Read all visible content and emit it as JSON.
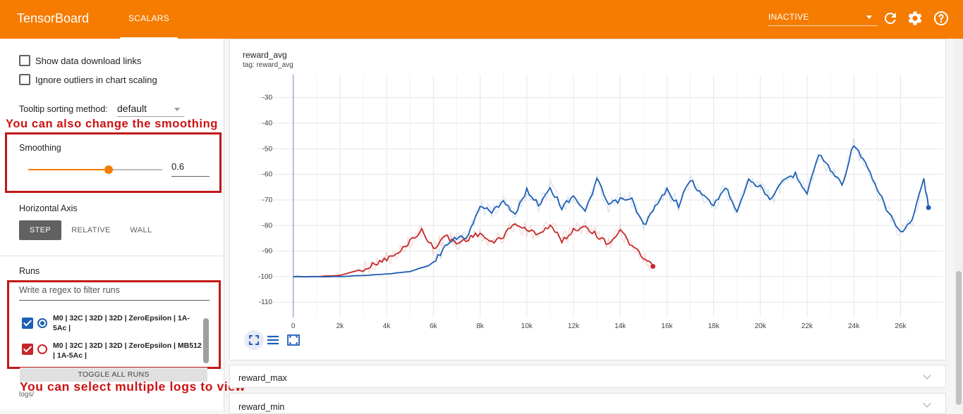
{
  "app": {
    "brand": "TensorBoard",
    "tab": "SCALARS",
    "status": "INACTIVE",
    "icons": [
      "refresh-icon",
      "gear-icon",
      "help-icon"
    ]
  },
  "sidebar": {
    "show_download": "Show data download links",
    "ignore_outliers": "Ignore outliers in chart scaling",
    "tooltip_label": "Tooltip sorting method:",
    "tooltip_value": "default",
    "annotation_smoothing": "You can also change the smoothing",
    "smoothing_label": "Smoothing",
    "smoothing_value": "0.6",
    "smoothing_level": 0.6,
    "horizontal_axis_label": "Horizontal Axis",
    "axis_options": [
      "STEP",
      "RELATIVE",
      "WALL"
    ],
    "axis_selected": "STEP",
    "runs_label": "Runs",
    "filter_placeholder": "Write a regex to filter runs",
    "runs": [
      {
        "label": "M0 | 32C | 32D | 32D | ZeroEpsilon | 1A-5Ac |",
        "color": "#1e5fb4",
        "checked": true,
        "selected": true
      },
      {
        "label": "M0 | 32C | 32D | 32D | ZeroEpsilon | MB512 | 1A-5Ac |",
        "color": "#c62828",
        "checked": true,
        "selected": false
      }
    ],
    "toggle_all": "TOGGLE ALL RUNS",
    "annotation_runs": "You can select multiple logs to view",
    "logs_label": "logs/"
  },
  "main": {
    "card_title": "reward_avg",
    "card_tag": "tag: reward_avg",
    "collapsed": [
      "reward_max",
      "reward_min"
    ]
  },
  "chart_data": {
    "type": "line",
    "title": "reward_avg",
    "xlim": [
      -1500,
      27800
    ],
    "ylim": [
      -116,
      -21
    ],
    "x_ticks": [
      0,
      2000,
      4000,
      6000,
      8000,
      10000,
      12000,
      14000,
      16000,
      18000,
      20000,
      22000,
      24000,
      26000
    ],
    "x_tick_labels": [
      "0",
      "2k",
      "4k",
      "6k",
      "8k",
      "10k",
      "12k",
      "14k",
      "16k",
      "18k",
      "20k",
      "22k",
      "24k",
      "26k"
    ],
    "y_ticks": [
      -110,
      -100,
      -90,
      -80,
      -70,
      -60,
      -50,
      -40,
      -30
    ],
    "y_tick_labels": [
      "-110",
      "-100",
      "-90",
      "-80",
      "-70",
      "-60",
      "-50",
      "-40",
      "-30"
    ],
    "grid": true,
    "series": [
      {
        "name": "M0 | 32C | 32D | 32D | ZeroEpsilon | 1A-5Ac |",
        "color": "#1e5fb4",
        "x": [
          0,
          1000,
          2000,
          3000,
          4000,
          5000,
          6000,
          6500,
          7000,
          7500,
          8000,
          8500,
          9000,
          9500,
          10000,
          10500,
          11000,
          11500,
          12000,
          12500,
          13000,
          13500,
          14000,
          14500,
          15000,
          15500,
          16000,
          16500,
          17000,
          17500,
          18000,
          18500,
          19000,
          19500,
          20000,
          20500,
          21000,
          21500,
          22000,
          22500,
          23000,
          23500,
          24000,
          24500,
          25000,
          25500,
          26000,
          26500,
          27000,
          27200
        ],
        "y": [
          -100,
          -100,
          -100,
          -99.5,
          -99,
          -98,
          -95,
          -88,
          -85,
          -84,
          -72,
          -75,
          -70,
          -76,
          -66,
          -72,
          -65,
          -73,
          -68,
          -75,
          -62,
          -72,
          -70,
          -70,
          -80,
          -73,
          -66,
          -72,
          -62,
          -68,
          -72,
          -65,
          -74,
          -62,
          -65,
          -70,
          -62,
          -60,
          -67,
          -52,
          -58,
          -64,
          -48,
          -56,
          -66,
          -75,
          -83,
          -78,
          -62,
          -73
        ]
      },
      {
        "name": "M0 | 32C | 32D | 32D | ZeroEpsilon | MB512 | 1A-5Ac |",
        "color": "#c62828",
        "x": [
          0,
          1000,
          2000,
          3000,
          3500,
          4000,
          4500,
          5000,
          5500,
          6000,
          6500,
          7000,
          7500,
          8000,
          8500,
          9000,
          9500,
          10000,
          10500,
          11000,
          11500,
          12000,
          12500,
          13000,
          13500,
          14000,
          14500,
          15000,
          15400
        ],
        "y": [
          -100,
          -100,
          -99.5,
          -97,
          -95,
          -93,
          -91,
          -86,
          -82,
          -89,
          -84,
          -87,
          -85,
          -83,
          -87,
          -84,
          -79,
          -82,
          -83,
          -80,
          -86,
          -82,
          -80,
          -84,
          -87,
          -82,
          -88,
          -93,
          -96
        ]
      }
    ]
  }
}
